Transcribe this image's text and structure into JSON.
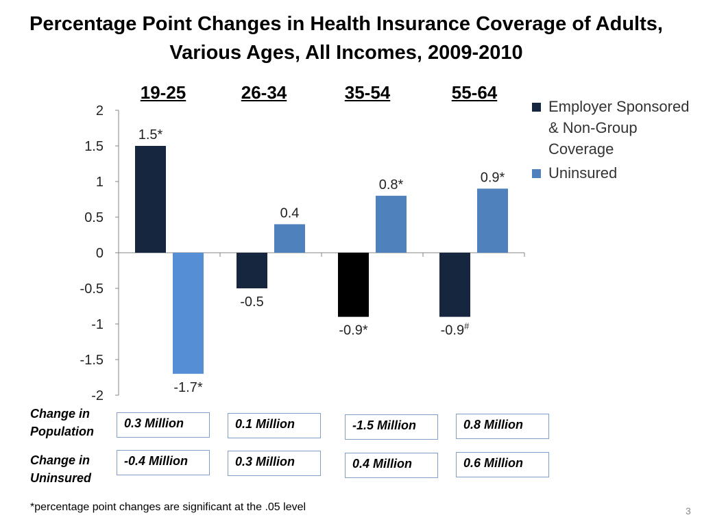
{
  "title": "Percentage Point Changes in Health Insurance Coverage of Adults, Various Ages, All Incomes, 2009-2010",
  "chart_data": {
    "type": "bar",
    "title": "Percentage Point Changes in Health Insurance Coverage of Adults, Various Ages, All Incomes, 2009-2010",
    "categories": [
      "19-25",
      "26-34",
      "35-54",
      "55-64"
    ],
    "series": [
      {
        "name": "Employer Sponsored & Non-Group Coverage",
        "color": "#16263f",
        "values": [
          1.5,
          -0.5,
          -0.9,
          -0.9
        ],
        "labels": [
          "1.5*",
          "-0.5",
          "-0.9*",
          "-0.9"
        ],
        "label_superscripts": [
          "",
          "",
          "",
          "#"
        ],
        "bar_colors": [
          "#16263f",
          "#16263f",
          "#000000",
          "#16263f"
        ]
      },
      {
        "name": "Uninsured",
        "color": "#4f81bd",
        "values": [
          -1.7,
          0.4,
          0.8,
          0.9
        ],
        "labels": [
          "-1.7*",
          "0.4",
          "0.8*",
          "0.9*"
        ],
        "label_superscripts": [
          "",
          "",
          "",
          ""
        ],
        "bar_colors": [
          "#558ed5",
          "#4f81bd",
          "#4f81bd",
          "#4f81bd"
        ]
      }
    ],
    "ylim": [
      -2,
      2
    ],
    "yticks": [
      "2",
      "1.5",
      "1",
      "0.5",
      "0",
      "-0.5",
      "-1",
      "-1.5",
      "-2"
    ],
    "ytick_values": [
      2,
      1.5,
      1,
      0.5,
      0,
      -0.5,
      -1,
      -1.5,
      -2
    ],
    "xlabel": "",
    "ylabel": "",
    "grid": false,
    "legend_position": "top-right"
  },
  "legend": {
    "items": [
      {
        "label": "Employer Sponsored & Non-Group Coverage",
        "color": "#16263f"
      },
      {
        "label": "Uninsured",
        "color": "#4f81bd"
      }
    ]
  },
  "table": {
    "row_labels": [
      "Change in Population",
      "Change in Uninsured"
    ],
    "population": [
      "0.3 Million",
      "0.1 Million",
      "-1.5 Million",
      "0.8 Million"
    ],
    "uninsured": [
      "-0.4 Million",
      "0.3 Million",
      "0.4 Million",
      "0.6 Million"
    ]
  },
  "footnote": "*percentage point changes are significant at the .05 level",
  "page_number": "3"
}
